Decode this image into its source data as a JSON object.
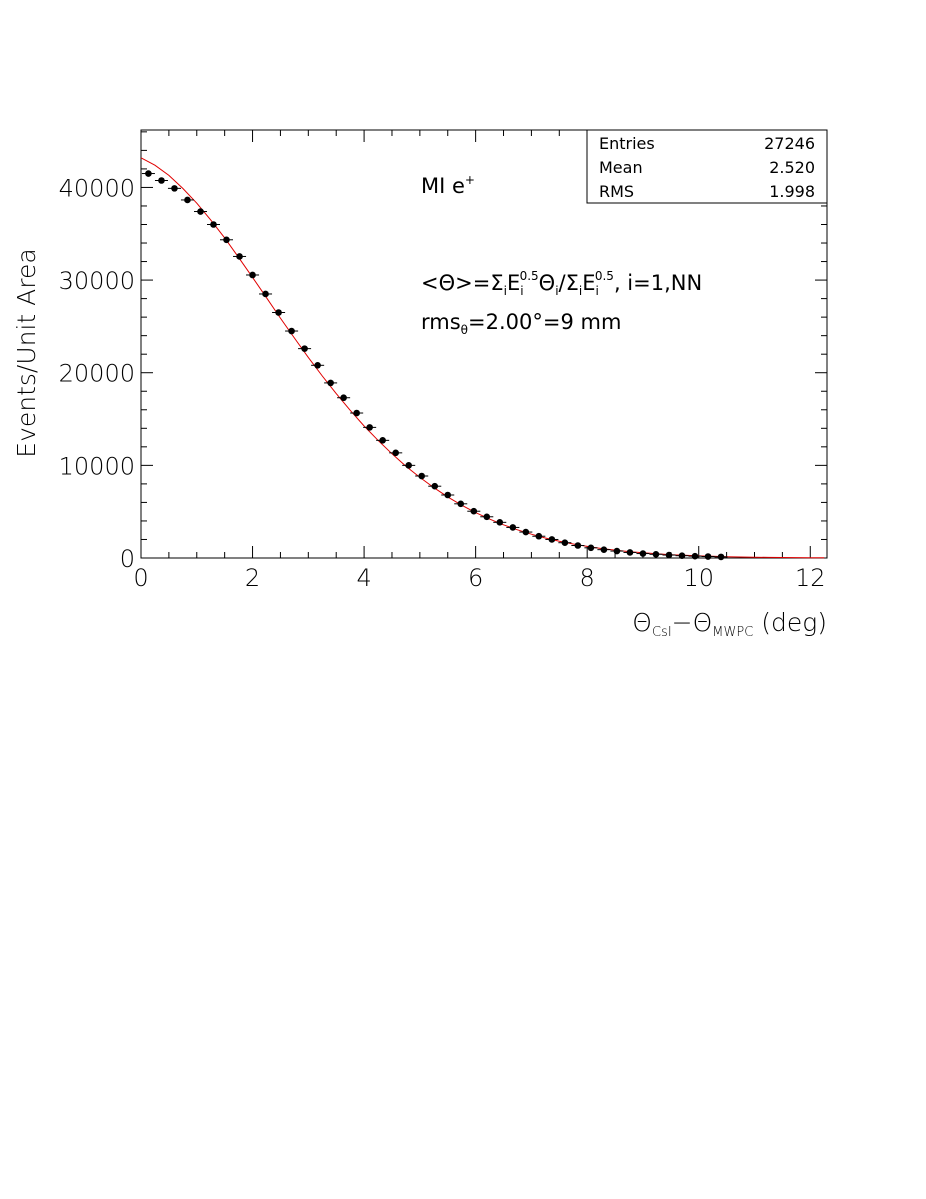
{
  "chart_data": {
    "type": "scatter",
    "xlabel": {
      "main": "Θ",
      "sub1": "CsI",
      "sep": "−Θ",
      "sub2": "MWPC",
      "unit": " (deg)"
    },
    "ylabel": "Events/Unit Area",
    "xlim": [
      0,
      12.3
    ],
    "ylim": [
      0,
      46200
    ],
    "x_ticks": [
      0,
      2,
      4,
      6,
      8,
      10,
      12
    ],
    "y_ticks": [
      0,
      10000,
      20000,
      30000,
      40000
    ],
    "x_tick_labels": [
      "0",
      "2",
      "4",
      "6",
      "8",
      "10",
      "12"
    ],
    "y_tick_labels": [
      "0",
      "10000",
      "20000",
      "30000",
      "40000"
    ],
    "stats": [
      {
        "label": "Entries",
        "value": "27246"
      },
      {
        "label": "Mean",
        "value": "2.520"
      },
      {
        "label": "RMS",
        "value": "1.998"
      }
    ],
    "annotation_title": {
      "text": "MI e",
      "sup": "+"
    },
    "annotation_formula": {
      "p1": "<Θ>=Σ",
      "s1": "i",
      "p2": "E",
      "s2": "i",
      "e2": "0.5",
      "p3": "Θ",
      "s3": "i",
      "p4": "/Σ",
      "s4": "i",
      "p5": "E",
      "s5": "i",
      "e5": "0.5",
      "p6": ", i=1,NN"
    },
    "annotation_rms": {
      "p1": "rms",
      "sub": "θ",
      "p2": "=2.00°=9 mm"
    },
    "series": [
      {
        "type": "points_with_errors",
        "x": [
          0.133,
          0.367,
          0.6,
          0.833,
          1.067,
          1.3,
          1.533,
          1.767,
          2.0,
          2.233,
          2.467,
          2.7,
          2.933,
          3.167,
          3.4,
          3.633,
          3.867,
          4.1,
          4.333,
          4.567,
          4.8,
          5.033,
          5.267,
          5.5,
          5.733,
          5.967,
          6.2,
          6.433,
          6.667,
          6.9,
          7.133,
          7.367,
          7.6,
          7.833,
          8.067,
          8.3,
          8.533,
          8.767,
          9.0,
          9.233,
          9.467,
          9.7,
          9.933,
          10.167,
          10.4
        ],
        "y": [
          41500,
          40750,
          39900,
          38650,
          37400,
          36000,
          34350,
          32550,
          30550,
          28500,
          26500,
          24500,
          22600,
          20800,
          18900,
          17300,
          15650,
          14100,
          12700,
          11350,
          10000,
          8850,
          7750,
          6800,
          5850,
          5050,
          4450,
          3850,
          3300,
          2800,
          2350,
          2000,
          1650,
          1350,
          1100,
          900,
          750,
          600,
          480,
          400,
          320,
          250,
          200,
          160,
          120
        ]
      },
      {
        "type": "fit_curve",
        "x": [
          0,
          0.25,
          0.5,
          0.75,
          1,
          1.25,
          1.5,
          1.75,
          2,
          2.25,
          2.5,
          2.75,
          3,
          3.25,
          3.5,
          3.75,
          4,
          4.25,
          4.5,
          4.75,
          5,
          5.25,
          5.5,
          5.75,
          6,
          6.25,
          6.5,
          6.75,
          7,
          7.25,
          7.5,
          7.75,
          8,
          8.25,
          8.5,
          8.75,
          9,
          9.25,
          9.5,
          9.75,
          10,
          10.25,
          10.5,
          10.75,
          11,
          11.25,
          11.5,
          11.75,
          12,
          12.25
        ],
        "y": [
          43200,
          42400,
          41300,
          39900,
          38300,
          36500,
          34550,
          32450,
          30300,
          28100,
          25900,
          23750,
          21650,
          19650,
          17750,
          15950,
          14250,
          12700,
          11250,
          9900,
          8700,
          7600,
          6600,
          5700,
          4900,
          4200,
          3580,
          3040,
          2570,
          2160,
          1810,
          1510,
          1250,
          1030,
          850,
          690,
          560,
          450,
          360,
          290,
          230,
          180,
          140,
          110,
          85,
          65,
          50,
          38,
          28,
          20
        ],
        "color": "#e00000"
      }
    ]
  }
}
